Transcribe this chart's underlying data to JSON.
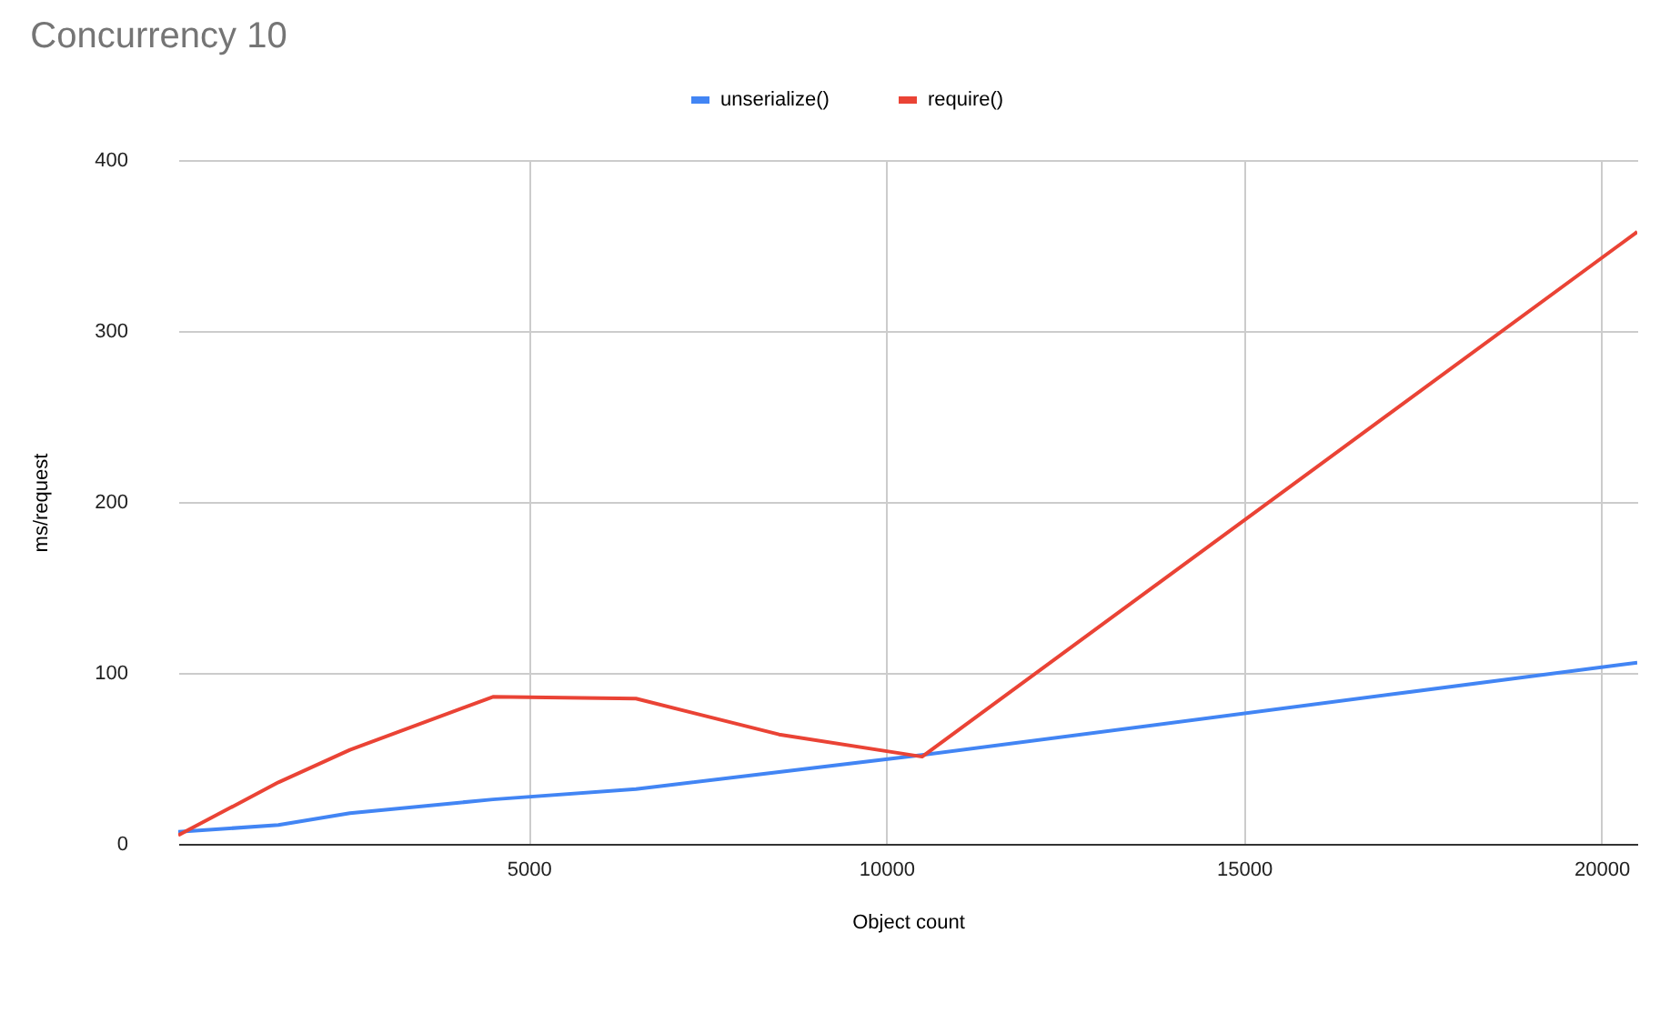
{
  "chart_data": {
    "type": "line",
    "title": "Concurrency 10",
    "xlabel": "Object count",
    "ylabel": "ms/request",
    "x": [
      100,
      1500,
      2500,
      4500,
      6500,
      8500,
      10500,
      20500
    ],
    "series": [
      {
        "name": "unserialize()",
        "color": "#4285f4",
        "values": [
          7,
          11,
          18,
          26,
          32,
          42,
          52,
          106
        ]
      },
      {
        "name": "require()",
        "color": "#ea4335",
        "values": [
          5,
          36,
          55,
          86,
          85,
          64,
          51,
          358
        ]
      }
    ],
    "xlim": [
      100,
      20500
    ],
    "xticks": [
      5000,
      10000,
      15000,
      20000
    ],
    "ylim": [
      0,
      400
    ],
    "yticks": [
      0,
      100,
      200,
      300,
      400
    ],
    "grid": true,
    "legend": "top",
    "marker": "none",
    "line_style": "solid"
  }
}
